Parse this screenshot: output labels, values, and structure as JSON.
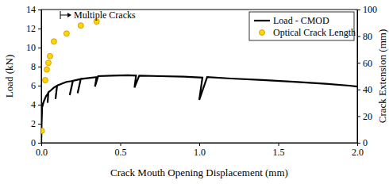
{
  "chart_data": {
    "type": "line",
    "xlabel": "Crack Mouth Opening Displacement (mm)",
    "ylabel": "Load (kN)",
    "y2label": "Crack Extension (mm)",
    "annotation": "Multiple Cracks",
    "xlim": [
      0,
      2
    ],
    "xticks": [
      {
        "value": 0,
        "label": "0.0"
      },
      0.5,
      {
        "value": 1,
        "label": "1.0"
      },
      1.5,
      {
        "value": 2,
        "label": "2.0"
      }
    ],
    "ylim": [
      0,
      14
    ],
    "yticks": [
      0,
      2,
      4,
      6,
      8,
      10,
      12,
      14
    ],
    "y2lim": [
      0,
      100
    ],
    "y2ticks": [
      0,
      20,
      40,
      60,
      80,
      100
    ],
    "legend": "upper right",
    "series": [
      {
        "name": "Load - CMOD",
        "type": "line",
        "color": "#000000",
        "line_style": "solid",
        "x": [
          0,
          0.002,
          0.004,
          0.006,
          0.01,
          0.015,
          0.02,
          0.03,
          0.04,
          0.045,
          0.04,
          0.045,
          0.06,
          0.08,
          0.1,
          0.09,
          0.1,
          0.13,
          0.16,
          0.2,
          0.18,
          0.2,
          0.25,
          0.23,
          0.25,
          0.3,
          0.35,
          0.34,
          0.36,
          0.45,
          0.55,
          0.6,
          0.59,
          0.62,
          0.75,
          0.9,
          1.02,
          1.0,
          1.05,
          1.2,
          1.4,
          1.6,
          1.8,
          1.95,
          2.0
        ],
        "values": [
          0,
          2.0,
          3.0,
          4.2,
          4.0,
          4.3,
          4.5,
          4.9,
          5.1,
          5.3,
          4.2,
          5.3,
          5.5,
          5.8,
          6.0,
          4.6,
          6.0,
          6.2,
          6.4,
          6.5,
          5.0,
          6.5,
          6.7,
          5.2,
          6.7,
          6.8,
          6.9,
          5.9,
          7.0,
          7.05,
          7.1,
          7.05,
          5.8,
          7.05,
          7.0,
          6.95,
          6.85,
          4.5,
          6.9,
          6.75,
          6.6,
          6.4,
          6.2,
          6.0,
          5.9
        ]
      },
      {
        "name": "Optical Crack Length",
        "type": "scatter",
        "color": "#ffd700",
        "marker": "circle",
        "axis": "y2",
        "x": [
          0.003,
          0.025,
          0.035,
          0.045,
          0.055,
          0.08,
          0.16,
          0.25,
          0.35
        ],
        "values": [
          9,
          47,
          55,
          60,
          65,
          76,
          82,
          88,
          91
        ]
      }
    ]
  }
}
